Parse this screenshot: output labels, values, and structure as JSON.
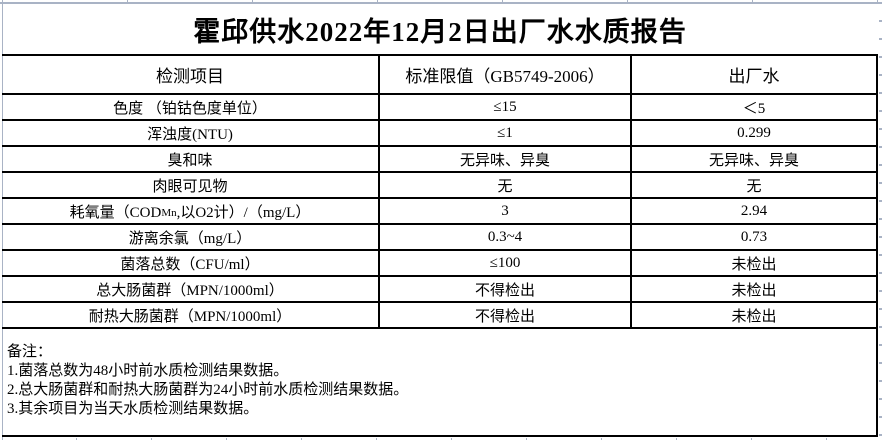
{
  "title": "霍邱供水2022年12月2日出厂水水质报告",
  "table": {
    "headers": [
      "检测项目",
      "标准限值（GB5749-2006）",
      "出厂水"
    ],
    "rows": [
      {
        "item": "色度 （铂钴色度单位）",
        "limit": "≤15",
        "value": "＜5"
      },
      {
        "item": "浑浊度(NTU)",
        "limit": "≤1",
        "value": "0.299"
      },
      {
        "item": "臭和味",
        "limit": "无异味、异臭",
        "value": "无异味、异臭"
      },
      {
        "item": "肉眼可见物",
        "limit": "无",
        "value": "无"
      },
      {
        "item_pre": "耗氧量（COD",
        "item_sub": "Mn",
        "item_post": ",以O2计）/（mg/L）",
        "limit": "3",
        "value": "2.94"
      },
      {
        "item": "游离余氯（mg/L）",
        "limit": "0.3~4",
        "value": "0.73"
      },
      {
        "item": "菌落总数（CFU/ml）",
        "limit": "≤100",
        "value": "未检出"
      },
      {
        "item": "总大肠菌群（MPN/1000ml）",
        "limit": "不得检出",
        "value": "未检出"
      },
      {
        "item": "耐热大肠菌群（MPN/1000ml）",
        "limit": "不得检出",
        "value": "未检出"
      }
    ]
  },
  "notes": {
    "label": "备注：",
    "lines": [
      "1.菌落总数为48小时前水质检测结果数据。",
      "2.总大肠菌群和耐热大肠菌群为24小时前水质检测结果数据。",
      "3.其余项目为当天水质检测结果数据。"
    ]
  },
  "colors": {
    "border": "#000000",
    "gridline": "#a9b3c5",
    "background": "#ffffff",
    "text": "#000000"
  }
}
